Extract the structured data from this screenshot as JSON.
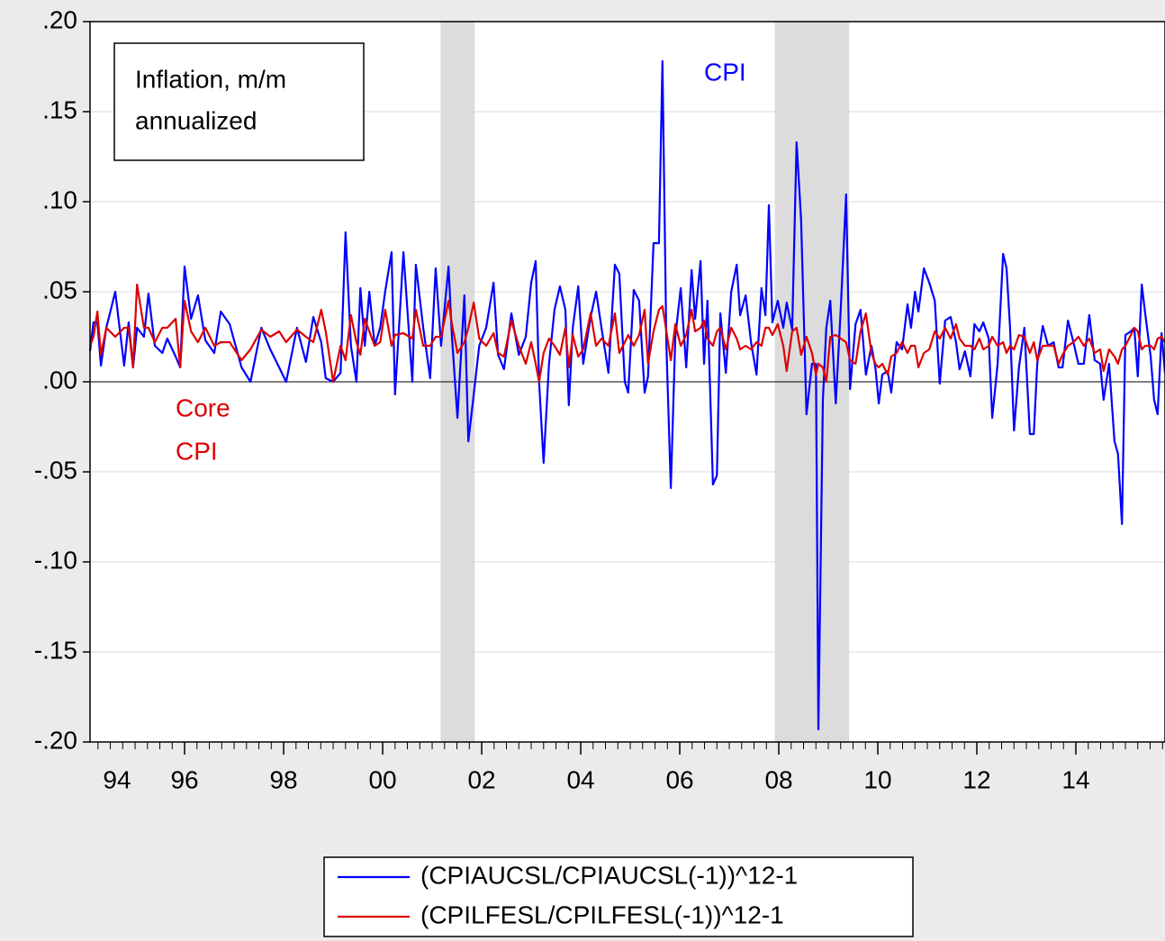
{
  "chart_data": {
    "type": "line",
    "annotations": [
      "Inflation, m/m",
      "annualized",
      "CPI",
      "Core",
      "CPI"
    ],
    "x": [
      1994.09,
      1994.16,
      1994.24,
      1994.31,
      1994.42,
      1994.6,
      1994.78,
      1994.87,
      1994.96,
      1995.04,
      1995.18,
      1995.27,
      1995.4,
      1995.55,
      1995.65,
      1995.82,
      1995.91,
      1996.0,
      1996.13,
      1996.27,
      1996.42,
      1996.6,
      1996.73,
      1996.91,
      1997.15,
      1997.33,
      1997.55,
      1997.73,
      1997.91,
      1998.05,
      1998.27,
      1998.45,
      1998.6,
      1998.76,
      1998.85,
      1999.0,
      1999.15,
      1999.25,
      1999.36,
      1999.47,
      1999.55,
      1999.64,
      1999.73,
      1999.84,
      1999.95,
      2000.05,
      2000.18,
      2000.25,
      2000.42,
      2000.6,
      2000.67,
      2000.82,
      2000.96,
      2001.07,
      2001.18,
      2001.33,
      2001.4,
      2001.51,
      2001.65,
      2001.73,
      2001.84,
      2001.95,
      2002.09,
      2002.24,
      2002.33,
      2002.45,
      2002.6,
      2002.75,
      2002.89,
      2003.0,
      2003.09,
      2003.16,
      2003.25,
      2003.36,
      2003.47,
      2003.58,
      2003.69,
      2003.76,
      2003.84,
      2003.95,
      2004.05,
      2004.2,
      2004.31,
      2004.42,
      2004.56,
      2004.69,
      2004.78,
      2004.89,
      2004.96,
      2005.07,
      2005.18,
      2005.29,
      2005.36,
      2005.47,
      2005.58,
      2005.65,
      2005.73,
      2005.82,
      2005.91,
      2006.02,
      2006.13,
      2006.24,
      2006.31,
      2006.42,
      2006.49,
      2006.56,
      2006.67,
      2006.75,
      2006.82,
      2006.93,
      2007.04,
      2007.15,
      2007.22,
      2007.33,
      2007.44,
      2007.55,
      2007.65,
      2007.73,
      2007.8,
      2007.87,
      2007.98,
      2008.09,
      2008.16,
      2008.27,
      2008.36,
      2008.45,
      2008.56,
      2008.67,
      2008.75,
      2008.8,
      2008.89,
      2008.96,
      2009.04,
      2009.15,
      2009.25,
      2009.36,
      2009.44,
      2009.55,
      2009.65,
      2009.76,
      2009.87,
      2009.95,
      2010.02,
      2010.09,
      2010.2,
      2010.27,
      2010.38,
      2010.49,
      2010.6,
      2010.67,
      2010.75,
      2010.82,
      2010.93,
      2011.04,
      2011.15,
      2011.25,
      2011.36,
      2011.47,
      2011.58,
      2011.65,
      2011.76,
      2011.87,
      2011.95,
      2012.05,
      2012.13,
      2012.24,
      2012.31,
      2012.42,
      2012.53,
      2012.6,
      2012.67,
      2012.75,
      2012.85,
      2012.96,
      2013.07,
      2013.15,
      2013.22,
      2013.33,
      2013.44,
      2013.55,
      2013.65,
      2013.73,
      2013.84,
      2013.95,
      2014.05,
      2014.16,
      2014.27,
      2014.38,
      2014.49,
      2014.56,
      2014.67,
      2014.78,
      2014.85,
      2014.93,
      2015.0,
      2015.11,
      2015.18,
      2015.25,
      2015.33,
      2015.4,
      2015.51,
      2015.58,
      2015.65,
      2015.73,
      2015.8
    ],
    "series": [
      {
        "name": "(CPIAUCSL/CPIAUCSL(-1))^12-1",
        "color": "#0000ff",
        "values": [
          0.017,
          0.033,
          0.033,
          0.009,
          0.03,
          0.05,
          0.009,
          0.033,
          0.008,
          0.03,
          0.025,
          0.049,
          0.02,
          0.016,
          0.024,
          0.014,
          0.008,
          0.064,
          0.035,
          0.048,
          0.023,
          0.016,
          0.039,
          0.032,
          0.008,
          0.0,
          0.03,
          0.018,
          0.008,
          0.0,
          0.03,
          0.011,
          0.036,
          0.022,
          0.002,
          0.0,
          0.005,
          0.083,
          0.02,
          0.0,
          0.052,
          0.02,
          0.05,
          0.02,
          0.03,
          0.05,
          0.072,
          -0.007,
          0.072,
          0.0,
          0.065,
          0.03,
          0.002,
          0.063,
          0.02,
          0.064,
          0.025,
          -0.02,
          0.048,
          -0.033,
          -0.007,
          0.02,
          0.03,
          0.055,
          0.015,
          0.007,
          0.038,
          0.015,
          0.025,
          0.055,
          0.067,
          0.0,
          -0.045,
          0.01,
          0.04,
          0.053,
          0.04,
          -0.013,
          0.03,
          0.053,
          0.01,
          0.036,
          0.05,
          0.03,
          0.005,
          0.065,
          0.06,
          0.0,
          -0.006,
          0.051,
          0.045,
          -0.006,
          0.003,
          0.077,
          0.077,
          0.178,
          0.02,
          -0.059,
          0.025,
          0.052,
          0.008,
          0.062,
          0.035,
          0.067,
          0.01,
          0.045,
          -0.057,
          -0.052,
          0.038,
          0.005,
          0.05,
          0.065,
          0.037,
          0.048,
          0.022,
          0.004,
          0.052,
          0.037,
          0.098,
          0.033,
          0.045,
          0.03,
          0.044,
          0.029,
          0.133,
          0.09,
          -0.018,
          0.01,
          0.01,
          -0.193,
          -0.01,
          0.03,
          0.045,
          -0.012,
          0.04,
          0.104,
          -0.004,
          0.032,
          0.04,
          0.004,
          0.02,
          0.008,
          -0.012,
          0.004,
          0.006,
          -0.006,
          0.022,
          0.018,
          0.043,
          0.03,
          0.05,
          0.039,
          0.063,
          0.055,
          0.045,
          -0.001,
          0.034,
          0.036,
          0.022,
          0.007,
          0.017,
          0.003,
          0.032,
          0.028,
          0.033,
          0.024,
          -0.02,
          0.01,
          0.071,
          0.063,
          0.03,
          -0.027,
          0.008,
          0.03,
          -0.029,
          -0.029,
          0.01,
          0.031,
          0.02,
          0.022,
          0.008,
          0.008,
          0.034,
          0.022,
          0.01,
          0.01,
          0.037,
          0.012,
          0.01,
          -0.01,
          0.01,
          -0.033,
          -0.04,
          -0.079,
          0.026,
          0.028,
          0.03,
          0.003,
          0.054,
          0.038,
          0.014,
          -0.01,
          -0.018,
          0.027,
          0.005
        ]
      },
      {
        "name": "(CPILFESL/CPILFESL(-1))^12-1",
        "color": "#dd0000",
        "values": [
          0.02,
          0.025,
          0.039,
          0.015,
          0.03,
          0.025,
          0.03,
          0.03,
          0.008,
          0.054,
          0.03,
          0.03,
          0.022,
          0.03,
          0.03,
          0.035,
          0.008,
          0.045,
          0.028,
          0.022,
          0.03,
          0.02,
          0.022,
          0.022,
          0.012,
          0.018,
          0.029,
          0.025,
          0.028,
          0.022,
          0.029,
          0.025,
          0.022,
          0.04,
          0.028,
          0.0,
          0.02,
          0.012,
          0.037,
          0.022,
          0.015,
          0.035,
          0.028,
          0.02,
          0.022,
          0.04,
          0.02,
          0.026,
          0.027,
          0.024,
          0.04,
          0.02,
          0.02,
          0.025,
          0.025,
          0.045,
          0.032,
          0.016,
          0.022,
          0.03,
          0.044,
          0.024,
          0.02,
          0.027,
          0.016,
          0.014,
          0.034,
          0.02,
          0.01,
          0.022,
          0.01,
          0.0,
          0.016,
          0.024,
          0.02,
          0.015,
          0.03,
          0.008,
          0.026,
          0.014,
          0.018,
          0.038,
          0.02,
          0.024,
          0.02,
          0.038,
          0.016,
          0.022,
          0.026,
          0.02,
          0.026,
          0.04,
          0.01,
          0.028,
          0.04,
          0.042,
          0.028,
          0.012,
          0.032,
          0.02,
          0.026,
          0.04,
          0.028,
          0.03,
          0.034,
          0.024,
          0.02,
          0.028,
          0.03,
          0.018,
          0.03,
          0.024,
          0.018,
          0.02,
          0.018,
          0.022,
          0.02,
          0.03,
          0.03,
          0.026,
          0.032,
          0.02,
          0.006,
          0.028,
          0.03,
          0.015,
          0.025,
          0.016,
          0.004,
          0.01,
          0.008,
          0.0,
          0.025,
          0.026,
          0.024,
          0.022,
          0.012,
          0.01,
          0.028,
          0.038,
          0.016,
          0.01,
          0.008,
          0.01,
          0.004,
          0.014,
          0.016,
          0.022,
          0.016,
          0.02,
          0.02,
          0.008,
          0.016,
          0.018,
          0.028,
          0.024,
          0.03,
          0.024,
          0.032,
          0.024,
          0.02,
          0.02,
          0.018,
          0.024,
          0.018,
          0.02,
          0.025,
          0.02,
          0.022,
          0.016,
          0.02,
          0.018,
          0.026,
          0.025,
          0.016,
          0.022,
          0.012,
          0.02,
          0.02,
          0.02,
          0.01,
          0.015,
          0.02,
          0.022,
          0.025,
          0.02,
          0.024,
          0.016,
          0.018,
          0.006,
          0.018,
          0.014,
          0.01,
          0.018,
          0.02,
          0.026,
          0.03,
          0.028,
          0.018,
          0.02,
          0.02,
          0.018,
          0.024,
          0.025,
          0.022
        ]
      }
    ],
    "shading": [
      [
        2001.17,
        2001.86
      ],
      [
        2007.92,
        2009.42
      ]
    ],
    "xlim": [
      1994.09,
      2015.8
    ],
    "xticks": [
      {
        "value": 1994,
        "label": "94"
      },
      {
        "value": 1996,
        "label": "96"
      },
      {
        "value": 1998,
        "label": "98"
      },
      {
        "value": 2000,
        "label": "00"
      },
      {
        "value": 2002,
        "label": "02"
      },
      {
        "value": 2004,
        "label": "04"
      },
      {
        "value": 2006,
        "label": "06"
      },
      {
        "value": 2008,
        "label": "08"
      },
      {
        "value": 2010,
        "label": "10"
      },
      {
        "value": 2012,
        "label": "12"
      },
      {
        "value": 2014,
        "label": "14"
      }
    ],
    "ylim": [
      -0.2,
      0.2
    ],
    "yticks": [
      {
        "value": 0.2,
        "label": ".20"
      },
      {
        "value": 0.15,
        "label": ".15"
      },
      {
        "value": 0.1,
        "label": ".10"
      },
      {
        "value": 0.05,
        "label": ".05"
      },
      {
        "value": 0,
        "label": ".00"
      },
      {
        "value": -0.05,
        "label": "-.05"
      },
      {
        "value": -0.1,
        "label": "-.10"
      },
      {
        "value": -0.15,
        "label": "-.15"
      },
      {
        "value": -0.2,
        "label": "-.20"
      }
    ],
    "grid": true
  }
}
